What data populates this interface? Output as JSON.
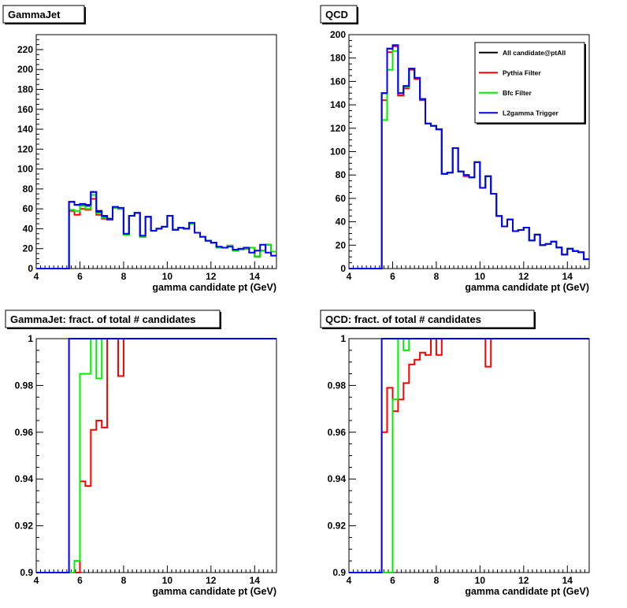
{
  "chart_data": [
    {
      "type": "line",
      "title": "GammaJet",
      "xlabel": "gamma candidate pt (GeV)",
      "ylabel": "",
      "xlim": [
        4,
        15
      ],
      "ylim": [
        0,
        235
      ],
      "xticks": [
        4,
        6,
        8,
        10,
        12,
        14
      ],
      "yticks": [
        0,
        20,
        40,
        60,
        80,
        100,
        120,
        140,
        160,
        180,
        200,
        220
      ],
      "bin_edges": [
        4.0,
        4.25,
        4.5,
        4.75,
        5.0,
        5.25,
        5.5,
        5.75,
        6.0,
        6.25,
        6.5,
        6.75,
        7.0,
        7.25,
        7.5,
        7.75,
        8.0,
        8.25,
        8.5,
        8.75,
        9.0,
        9.25,
        9.5,
        9.75,
        10.0,
        10.25,
        10.5,
        10.75,
        11.0,
        11.25,
        11.5,
        11.75,
        12.0,
        12.25,
        12.5,
        12.75,
        13.0,
        13.25,
        13.5,
        13.75,
        14.0,
        14.25,
        14.5,
        14.75,
        15.0
      ],
      "series": [
        {
          "name": "All candidate@ptAll",
          "color": "#000000",
          "values": [
            0,
            0,
            0,
            0,
            0,
            0,
            67,
            64,
            64,
            63,
            77,
            58,
            52,
            50,
            61,
            60,
            34,
            53,
            56,
            32,
            52,
            38,
            40,
            42,
            53,
            39,
            41,
            40,
            45,
            36,
            32,
            28,
            26,
            21,
            21,
            23,
            18,
            19,
            20,
            21,
            12,
            18,
            24,
            17
          ]
        },
        {
          "name": "Pythia Filter",
          "color": "#ff0000",
          "values": [
            0,
            0,
            0,
            0,
            0,
            0,
            58,
            54,
            60,
            59,
            70,
            54,
            50,
            49,
            61,
            60,
            34,
            53,
            56,
            32,
            52,
            38,
            40,
            42,
            53,
            39,
            41,
            40,
            45,
            36,
            32,
            28,
            26,
            21,
            21,
            23,
            18,
            19,
            20,
            21,
            12,
            18,
            24,
            17
          ]
        },
        {
          "name": "Bfc Filter",
          "color": "#00ee00",
          "values": [
            0,
            0,
            0,
            0,
            0,
            0,
            59,
            58,
            63,
            60,
            74,
            56,
            51,
            50,
            61,
            60,
            34,
            53,
            56,
            32,
            52,
            38,
            40,
            42,
            53,
            39,
            41,
            40,
            45,
            36,
            32,
            28,
            26,
            21,
            21,
            23,
            18,
            19,
            20,
            21,
            12,
            18,
            24,
            17
          ]
        },
        {
          "name": "L2gamma Trigger",
          "color": "#0000ff",
          "values": [
            0,
            0,
            0,
            0,
            0,
            0,
            67,
            64,
            65,
            64,
            77,
            57,
            53,
            50,
            62,
            61,
            35,
            53,
            56,
            33,
            52,
            38,
            40,
            42,
            53,
            39,
            41,
            40,
            46,
            36,
            32,
            28,
            26,
            22,
            21,
            22,
            19,
            20,
            21,
            16,
            18,
            24,
            16,
            13
          ]
        }
      ]
    },
    {
      "type": "line",
      "title": "QCD",
      "xlabel": "gamma candidate pt (GeV)",
      "ylabel": "",
      "xlim": [
        4,
        15
      ],
      "ylim": [
        0,
        200
      ],
      "xticks": [
        4,
        6,
        8,
        10,
        12,
        14
      ],
      "yticks": [
        0,
        20,
        40,
        60,
        80,
        100,
        120,
        140,
        160,
        180,
        200
      ],
      "legend_position": "top-right",
      "bin_edges": [
        4.0,
        4.25,
        4.5,
        4.75,
        5.0,
        5.25,
        5.5,
        5.75,
        6.0,
        6.25,
        6.5,
        6.75,
        7.0,
        7.25,
        7.5,
        7.75,
        8.0,
        8.25,
        8.5,
        8.75,
        9.0,
        9.25,
        9.5,
        9.75,
        10.0,
        10.25,
        10.5,
        10.75,
        11.0,
        11.25,
        11.5,
        11.75,
        12.0,
        12.25,
        12.5,
        12.75,
        13.0,
        13.25,
        13.5,
        13.75,
        14.0,
        14.25,
        14.5,
        14.75,
        15.0
      ],
      "series": [
        {
          "name": "All candidate@ptAll",
          "color": "#000000",
          "values": [
            0,
            0,
            0,
            0,
            0,
            0,
            150,
            188,
            191,
            148,
            156,
            171,
            163,
            145,
            124,
            122,
            119,
            81,
            82,
            103,
            83,
            80,
            78,
            91,
            69,
            79,
            64,
            45,
            36,
            42,
            32,
            33,
            35,
            24,
            29,
            20,
            21,
            23,
            18,
            12,
            17,
            15,
            14,
            8
          ]
        },
        {
          "name": "Pythia Filter",
          "color": "#ff0000",
          "values": [
            0,
            0,
            0,
            0,
            0,
            0,
            144,
            185,
            190,
            148,
            154,
            170,
            162,
            144,
            124,
            122,
            119,
            81,
            82,
            103,
            83,
            79,
            78,
            91,
            69,
            79,
            64,
            45,
            36,
            42,
            32,
            33,
            35,
            24,
            29,
            20,
            21,
            23,
            18,
            12,
            17,
            15,
            14,
            8
          ]
        },
        {
          "name": "Bfc Filter",
          "color": "#00ee00",
          "values": [
            0,
            0,
            0,
            0,
            0,
            0,
            127,
            170,
            186,
            150,
            155,
            171,
            163,
            145,
            124,
            122,
            119,
            81,
            82,
            103,
            83,
            80,
            78,
            91,
            69,
            79,
            64,
            45,
            36,
            42,
            32,
            33,
            35,
            24,
            29,
            20,
            21,
            23,
            18,
            12,
            17,
            15,
            14,
            8
          ]
        },
        {
          "name": "L2gamma Trigger",
          "color": "#0000ff",
          "values": [
            0,
            0,
            0,
            0,
            0,
            0,
            150,
            188,
            191,
            150,
            156,
            171,
            163,
            145,
            124,
            122,
            119,
            81,
            82,
            103,
            83,
            80,
            78,
            91,
            69,
            79,
            64,
            45,
            36,
            42,
            32,
            33,
            35,
            24,
            29,
            20,
            21,
            23,
            18,
            12,
            17,
            15,
            14,
            8
          ]
        }
      ]
    },
    {
      "type": "line",
      "title": "GammaJet: fract. of total # candidates",
      "xlabel": "gamma candidate pt (GeV)",
      "ylabel": "",
      "xlim": [
        4,
        15
      ],
      "ylim": [
        0.9,
        1.0
      ],
      "xticks": [
        4,
        6,
        8,
        10,
        12,
        14
      ],
      "yticks": [
        0.9,
        0.92,
        0.94,
        0.96,
        0.98,
        1
      ],
      "bin_edges": [
        4.0,
        4.25,
        4.5,
        4.75,
        5.0,
        5.25,
        5.5,
        5.75,
        6.0,
        6.25,
        6.5,
        6.75,
        7.0,
        7.25,
        7.5,
        7.75,
        8.0,
        8.25,
        8.5,
        8.75,
        9.0,
        9.25,
        9.5,
        9.75,
        10.0,
        10.25,
        10.5,
        10.75,
        11.0,
        11.25,
        11.5,
        11.75,
        12.0,
        12.25,
        12.5,
        12.75,
        13.0,
        13.25,
        13.5,
        13.75,
        14.0,
        14.25,
        14.5,
        14.75,
        15.0
      ],
      "series": [
        {
          "name": "Pythia Filter",
          "color": "#ff0000",
          "values": [
            0.9,
            0.9,
            0.9,
            0.9,
            0.9,
            0.9,
            0.9,
            0.9,
            0.939,
            0.937,
            0.961,
            0.965,
            0.962,
            1,
            1,
            0.984,
            1,
            1,
            1,
            1,
            1,
            1,
            1,
            1,
            1,
            1,
            1,
            1,
            1,
            1,
            1,
            1,
            1,
            1,
            1,
            1,
            1,
            1,
            1,
            1,
            1,
            1,
            1,
            1
          ]
        },
        {
          "name": "Bfc Filter",
          "color": "#00ee00",
          "values": [
            0.9,
            0.9,
            0.9,
            0.9,
            0.9,
            0.9,
            0.9,
            0.905,
            0.985,
            0.985,
            1,
            0.983,
            1,
            1,
            1,
            1,
            1,
            1,
            1,
            1,
            1,
            1,
            1,
            1,
            1,
            1,
            1,
            1,
            1,
            1,
            1,
            1,
            1,
            1,
            1,
            1,
            1,
            1,
            1,
            1,
            1,
            1,
            1,
            1
          ]
        },
        {
          "name": "L2gamma Trigger",
          "color": "#0000ff",
          "values": [
            0.9,
            0.9,
            0.9,
            0.9,
            0.9,
            0.9,
            1,
            1,
            1,
            1,
            1,
            1,
            1,
            1,
            1,
            1,
            1,
            1,
            1,
            1,
            1,
            1,
            1,
            1,
            1,
            1,
            1,
            1,
            1,
            1,
            1,
            1,
            1,
            1,
            1,
            1,
            1,
            1,
            1,
            1,
            1,
            1,
            1,
            1
          ]
        }
      ]
    },
    {
      "type": "line",
      "title": "QCD: fract. of total # candidates",
      "xlabel": "gamma candidate pt (GeV)",
      "ylabel": "",
      "xlim": [
        4,
        15
      ],
      "ylim": [
        0.9,
        1.0
      ],
      "xticks": [
        4,
        6,
        8,
        10,
        12,
        14
      ],
      "yticks": [
        0.9,
        0.92,
        0.94,
        0.96,
        0.98,
        1
      ],
      "bin_edges": [
        4.0,
        4.25,
        4.5,
        4.75,
        5.0,
        5.25,
        5.5,
        5.75,
        6.0,
        6.25,
        6.5,
        6.75,
        7.0,
        7.25,
        7.5,
        7.75,
        8.0,
        8.25,
        8.5,
        8.75,
        9.0,
        9.25,
        9.5,
        9.75,
        10.0,
        10.25,
        10.5,
        10.75,
        11.0,
        11.25,
        11.5,
        11.75,
        12.0,
        12.25,
        12.5,
        12.75,
        13.0,
        13.25,
        13.5,
        13.75,
        14.0,
        14.25,
        14.5,
        14.75,
        15.0
      ],
      "series": [
        {
          "name": "Pythia Filter",
          "color": "#ff0000",
          "values": [
            0.9,
            0.9,
            0.9,
            0.9,
            0.9,
            0.9,
            0.96,
            0.979,
            0.969,
            0.974,
            0.981,
            0.989,
            0.991,
            0.994,
            0.993,
            1,
            0.993,
            1,
            1,
            1,
            1,
            1,
            1,
            1,
            1,
            0.988,
            1,
            1,
            1,
            1,
            1,
            1,
            1,
            1,
            1,
            1,
            1,
            1,
            1,
            1,
            1,
            1,
            1,
            1
          ]
        },
        {
          "name": "Bfc Filter",
          "color": "#00ee00",
          "values": [
            0.9,
            0.9,
            0.9,
            0.9,
            0.9,
            0.9,
            0.9,
            0.9,
            0.974,
            1,
            0.995,
            1,
            1,
            1,
            1,
            1,
            1,
            1,
            1,
            1,
            1,
            1,
            1,
            1,
            1,
            1,
            1,
            1,
            1,
            1,
            1,
            1,
            1,
            1,
            1,
            1,
            1,
            1,
            1,
            1,
            1,
            1,
            1,
            1
          ]
        },
        {
          "name": "L2gamma Trigger",
          "color": "#0000ff",
          "values": [
            0.9,
            0.9,
            0.9,
            0.9,
            0.9,
            0.9,
            1,
            1,
            1,
            1,
            1,
            1,
            1,
            1,
            1,
            1,
            1,
            1,
            1,
            1,
            1,
            1,
            1,
            1,
            1,
            1,
            1,
            1,
            1,
            1,
            1,
            1,
            1,
            1,
            1,
            1,
            1,
            1,
            1,
            1,
            1,
            1,
            1,
            1
          ]
        }
      ]
    }
  ]
}
